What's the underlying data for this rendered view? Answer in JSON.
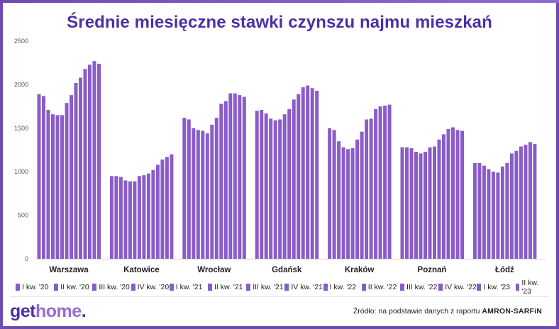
{
  "title": "Średnie miesięczne stawki czynszu najmu mieszkań",
  "logo": {
    "part1": "get",
    "part2": "home",
    "part3": "."
  },
  "source": {
    "prefix": "Źródło: na podstawie danych z raportu ",
    "name": "AMRON-SARFiN"
  },
  "colors": {
    "bar": "#8a5cc9",
    "title": "#4b2fa8",
    "frame": "#6d4bb3",
    "logo_accent": "#9a6ad3"
  },
  "chart_data": {
    "type": "bar",
    "title": "Średnie miesięczne stawki czynszu najmu mieszkań",
    "categories": [
      "Warszawa",
      "Katowice",
      "Wrocław",
      "Gdańsk",
      "Kraków",
      "Poznań",
      "Łódź"
    ],
    "series_names": [
      "I kw. '20",
      "II kw. '20",
      "III kw. '20",
      "IV kw. '20",
      "I kw. '21",
      "II kw. '21",
      "III kw. '21",
      "IV kw. '21",
      "I kw. '22",
      "II kw. '22",
      "III kw. '22",
      "IV kw. '22",
      "I kw. '23",
      "II kw. '23"
    ],
    "values": [
      [
        1890,
        1870,
        1710,
        1660,
        1650,
        1650,
        1790,
        1880,
        2020,
        2080,
        2180,
        2230,
        2270,
        2240
      ],
      [
        950,
        950,
        940,
        900,
        890,
        890,
        950,
        960,
        980,
        1020,
        1080,
        1140,
        1170,
        1200
      ],
      [
        1620,
        1600,
        1500,
        1480,
        1470,
        1440,
        1540,
        1620,
        1780,
        1810,
        1900,
        1900,
        1880,
        1860
      ],
      [
        1700,
        1710,
        1670,
        1610,
        1590,
        1600,
        1660,
        1720,
        1830,
        1890,
        1970,
        1990,
        1960,
        1930
      ],
      [
        1500,
        1480,
        1350,
        1280,
        1260,
        1270,
        1370,
        1460,
        1600,
        1610,
        1720,
        1750,
        1760,
        1770
      ],
      [
        1280,
        1280,
        1270,
        1230,
        1210,
        1230,
        1280,
        1290,
        1370,
        1430,
        1490,
        1510,
        1480,
        1470
      ],
      [
        1100,
        1100,
        1070,
        1030,
        1000,
        990,
        1060,
        1100,
        1210,
        1240,
        1290,
        1310,
        1340,
        1320
      ]
    ],
    "y_ticks": [
      "0",
      "500",
      "1000",
      "1500",
      "2000",
      "2500"
    ],
    "ylim": [
      0,
      2500
    ],
    "grid": false,
    "legend_position": "bottom"
  }
}
